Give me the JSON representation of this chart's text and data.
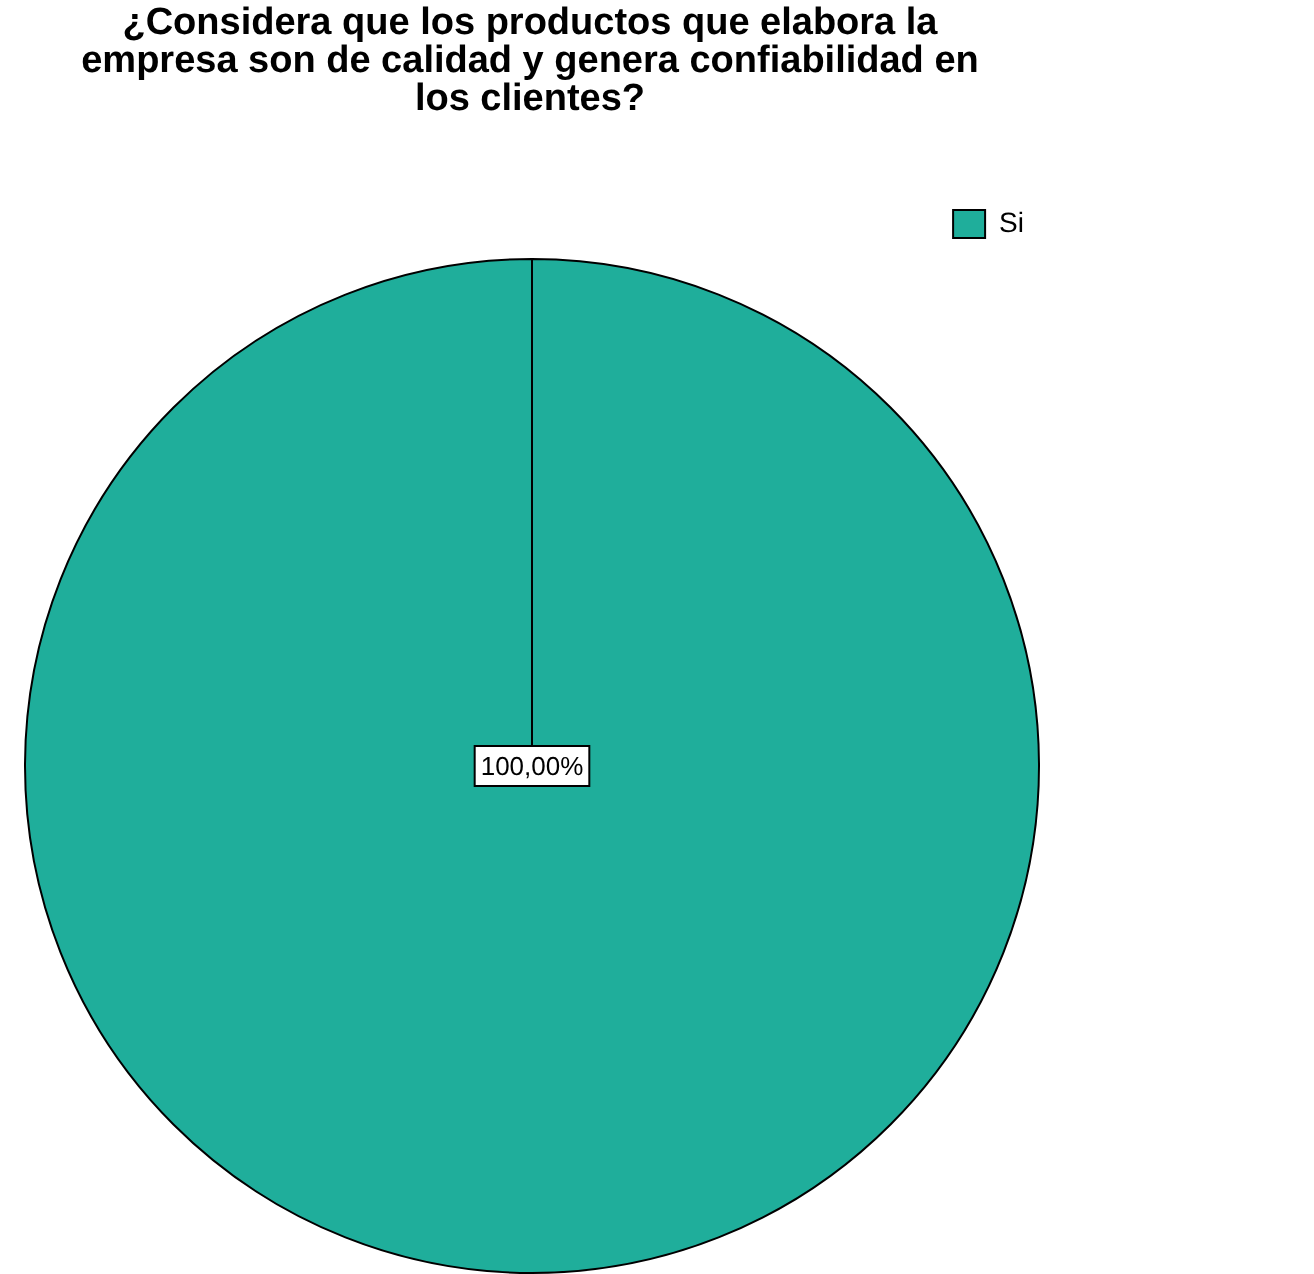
{
  "chart_data": {
    "type": "pie",
    "title": "¿Considera que los productos que elabora la empresa son de calidad y genera confiabilidad en los clientes?",
    "categories": [
      "Si"
    ],
    "values": [
      100
    ],
    "colors": [
      "#1fae9b"
    ],
    "value_labels": [
      "100,00%"
    ],
    "legend": "top right"
  }
}
